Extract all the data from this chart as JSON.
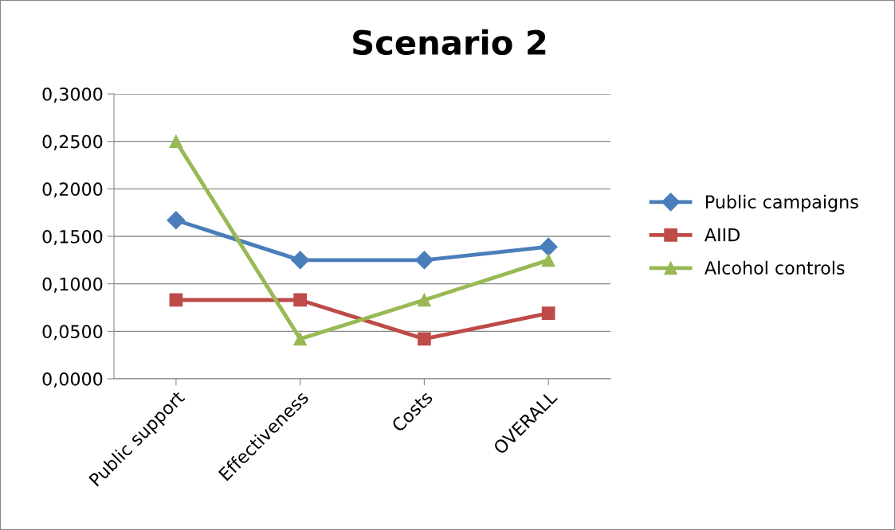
{
  "chart_data": {
    "type": "line",
    "title": "Scenario 2",
    "categories": [
      "Public support",
      "Effectiveness",
      "Costs",
      "OVERALL"
    ],
    "series": [
      {
        "name": "Public campaigns",
        "color": "#4a7ebb",
        "marker": "diamond",
        "values": [
          0.167,
          0.125,
          0.125,
          0.139
        ]
      },
      {
        "name": "AIID",
        "color": "#be4b48",
        "marker": "square",
        "values": [
          0.083,
          0.083,
          0.042,
          0.069
        ]
      },
      {
        "name": "Alcohol controls",
        "color": "#98b954",
        "marker": "triangle",
        "values": [
          0.25,
          0.042,
          0.083,
          0.125
        ]
      }
    ],
    "ylim": [
      0,
      0.3
    ],
    "yticks": [
      {
        "value": 0,
        "label": "0,0000"
      },
      {
        "value": 0.05,
        "label": "0,0500"
      },
      {
        "value": 0.1,
        "label": "0,1000"
      },
      {
        "value": 0.15,
        "label": "0,1500"
      },
      {
        "value": 0.2,
        "label": "0,2000"
      },
      {
        "value": 0.25,
        "label": "0,2500"
      },
      {
        "value": 0.3,
        "label": "0,3000"
      }
    ],
    "grid": "y",
    "legend": "right",
    "line_style": "solid"
  }
}
